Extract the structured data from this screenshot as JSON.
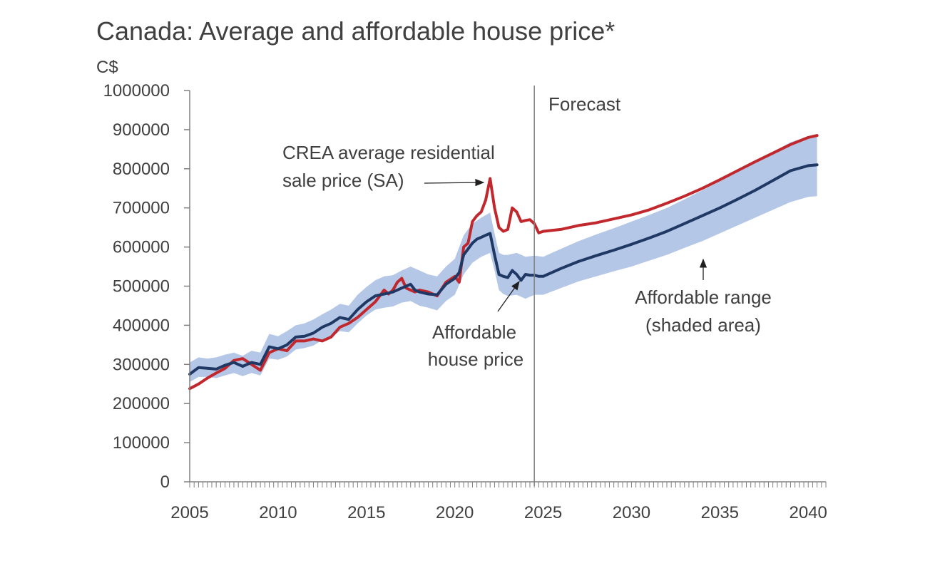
{
  "chart_data": {
    "type": "line",
    "title": "Canada: Average and affordable house price*",
    "ylabel": "C$",
    "xlabel": "",
    "xlim": [
      2005,
      2041
    ],
    "ylim": [
      0,
      1000000
    ],
    "y_ticks": [
      0,
      100000,
      200000,
      300000,
      400000,
      500000,
      600000,
      700000,
      800000,
      900000,
      1000000
    ],
    "y_tick_labels": [
      "0",
      "100000",
      "200000",
      "300000",
      "400000",
      "500000",
      "600000",
      "700000",
      "800000",
      "900000",
      "1000000"
    ],
    "x_ticks": [
      2005,
      2010,
      2015,
      2020,
      2025,
      2030,
      2035,
      2040
    ],
    "x_tick_labels": [
      "2005",
      "2010",
      "2015",
      "2020",
      "2025",
      "2030",
      "2035",
      "2040"
    ],
    "forecast_start": 2024.5,
    "forecast_label": "Forecast",
    "grid": false,
    "legend": "none",
    "colors": {
      "average": "#c0282d",
      "affordable": "#1f3864",
      "band": "#b4c7e7",
      "axis": "#808080",
      "forecast_line": "#7f7f7f"
    },
    "series": [
      {
        "name": "CREA average residential sale price (SA)",
        "x": [
          2005.0,
          2005.5,
          2006.0,
          2006.5,
          2007.0,
          2007.5,
          2008.0,
          2008.5,
          2009.0,
          2009.5,
          2010.0,
          2010.5,
          2011.0,
          2011.5,
          2012.0,
          2012.5,
          2013.0,
          2013.5,
          2014.0,
          2014.5,
          2015.0,
          2015.5,
          2016.0,
          2016.25,
          2016.5,
          2016.75,
          2017.0,
          2017.25,
          2017.5,
          2017.75,
          2018.0,
          2018.5,
          2019.0,
          2019.5,
          2020.0,
          2020.25,
          2020.5,
          2020.75,
          2021.0,
          2021.25,
          2021.5,
          2021.75,
          2022.0,
          2022.25,
          2022.5,
          2022.75,
          2023.0,
          2023.25,
          2023.5,
          2023.75,
          2024.0,
          2024.25,
          2024.5,
          2024.75,
          2025.0,
          2026.0,
          2027.0,
          2028.0,
          2029.0,
          2030.0,
          2031.0,
          2032.0,
          2033.0,
          2034.0,
          2035.0,
          2036.0,
          2037.0,
          2038.0,
          2039.0,
          2040.0,
          2040.5
        ],
        "values": [
          238000,
          250000,
          265000,
          278000,
          290000,
          310000,
          315000,
          300000,
          285000,
          330000,
          340000,
          335000,
          360000,
          360000,
          365000,
          360000,
          370000,
          395000,
          405000,
          420000,
          440000,
          460000,
          490000,
          480000,
          490000,
          510000,
          520000,
          495000,
          490000,
          485000,
          490000,
          485000,
          475000,
          510000,
          525000,
          510000,
          600000,
          610000,
          665000,
          680000,
          690000,
          720000,
          775000,
          700000,
          650000,
          640000,
          645000,
          700000,
          690000,
          665000,
          668000,
          670000,
          660000,
          636000,
          640000,
          645000,
          655000,
          662000,
          672000,
          682000,
          695000,
          712000,
          730000,
          750000,
          772000,
          795000,
          818000,
          840000,
          862000,
          880000,
          885000
        ]
      },
      {
        "name": "Affordable house price",
        "x": [
          2005.0,
          2005.5,
          2006.0,
          2006.5,
          2007.0,
          2007.5,
          2008.0,
          2008.5,
          2009.0,
          2009.5,
          2010.0,
          2010.5,
          2011.0,
          2011.5,
          2012.0,
          2012.5,
          2013.0,
          2013.5,
          2014.0,
          2014.5,
          2015.0,
          2015.5,
          2016.0,
          2016.5,
          2017.0,
          2017.25,
          2017.5,
          2017.75,
          2018.0,
          2018.5,
          2019.0,
          2019.5,
          2020.0,
          2020.25,
          2020.5,
          2020.75,
          2021.0,
          2021.25,
          2021.5,
          2021.75,
          2022.0,
          2022.25,
          2022.5,
          2022.75,
          2023.0,
          2023.25,
          2023.5,
          2023.75,
          2024.0,
          2024.25,
          2024.5,
          2024.75,
          2025.0,
          2026.0,
          2027.0,
          2028.0,
          2029.0,
          2030.0,
          2031.0,
          2032.0,
          2033.0,
          2034.0,
          2035.0,
          2036.0,
          2037.0,
          2038.0,
          2039.0,
          2040.0,
          2040.5
        ],
        "values": [
          275000,
          292000,
          290000,
          288000,
          298000,
          305000,
          295000,
          305000,
          300000,
          345000,
          340000,
          350000,
          370000,
          372000,
          380000,
          395000,
          405000,
          420000,
          415000,
          440000,
          460000,
          475000,
          480000,
          485000,
          495000,
          500000,
          505000,
          490000,
          485000,
          480000,
          478000,
          505000,
          520000,
          535000,
          580000,
          595000,
          610000,
          620000,
          625000,
          630000,
          635000,
          580000,
          530000,
          525000,
          522000,
          540000,
          530000,
          515000,
          530000,
          528000,
          528000,
          525000,
          525000,
          545000,
          563000,
          578000,
          592000,
          607000,
          623000,
          640000,
          660000,
          680000,
          700000,
          722000,
          745000,
          770000,
          795000,
          808000,
          810000
        ]
      },
      {
        "name": "Affordable range (shaded area)",
        "x": [
          2005.0,
          2005.5,
          2006.0,
          2006.5,
          2007.0,
          2007.5,
          2008.0,
          2008.5,
          2009.0,
          2009.5,
          2010.0,
          2010.5,
          2011.0,
          2011.5,
          2012.0,
          2012.5,
          2013.0,
          2013.5,
          2014.0,
          2014.5,
          2015.0,
          2015.5,
          2016.0,
          2016.5,
          2017.0,
          2017.5,
          2018.0,
          2018.5,
          2019.0,
          2019.5,
          2020.0,
          2020.5,
          2021.0,
          2021.5,
          2022.0,
          2022.25,
          2022.5,
          2022.75,
          2023.0,
          2023.5,
          2024.0,
          2024.5,
          2025.0,
          2026.0,
          2027.0,
          2028.0,
          2029.0,
          2030.0,
          2031.0,
          2032.0,
          2033.0,
          2034.0,
          2035.0,
          2036.0,
          2037.0,
          2038.0,
          2039.0,
          2040.0,
          2040.5
        ],
        "upper": [
          305000,
          318000,
          315000,
          318000,
          325000,
          330000,
          322000,
          335000,
          330000,
          378000,
          372000,
          385000,
          400000,
          405000,
          415000,
          428000,
          440000,
          455000,
          450000,
          478000,
          498000,
          515000,
          525000,
          528000,
          540000,
          550000,
          540000,
          530000,
          525000,
          550000,
          570000,
          630000,
          660000,
          675000,
          688000,
          635000,
          585000,
          580000,
          580000,
          585000,
          575000,
          578000,
          575000,
          595000,
          615000,
          632000,
          648000,
          665000,
          682000,
          700000,
          722000,
          745000,
          768000,
          792000,
          818000,
          843000,
          868000,
          882000,
          885000
        ],
        "lower": [
          255000,
          268000,
          268000,
          265000,
          272000,
          278000,
          270000,
          278000,
          272000,
          315000,
          312000,
          320000,
          338000,
          342000,
          348000,
          362000,
          370000,
          385000,
          382000,
          405000,
          425000,
          440000,
          445000,
          448000,
          458000,
          462000,
          450000,
          445000,
          438000,
          462000,
          478000,
          530000,
          560000,
          575000,
          585000,
          540000,
          490000,
          480000,
          475000,
          478000,
          468000,
          478000,
          478000,
          495000,
          512000,
          525000,
          538000,
          550000,
          565000,
          580000,
          598000,
          615000,
          635000,
          655000,
          675000,
          695000,
          715000,
          728000,
          730000
        ]
      }
    ],
    "annotations": [
      {
        "lines": [
          "CREA average residential",
          "sale price (SA)"
        ]
      },
      {
        "lines": [
          "Affordable",
          "house price"
        ]
      },
      {
        "lines": [
          "Affordable range",
          "(shaded area)"
        ]
      }
    ]
  }
}
